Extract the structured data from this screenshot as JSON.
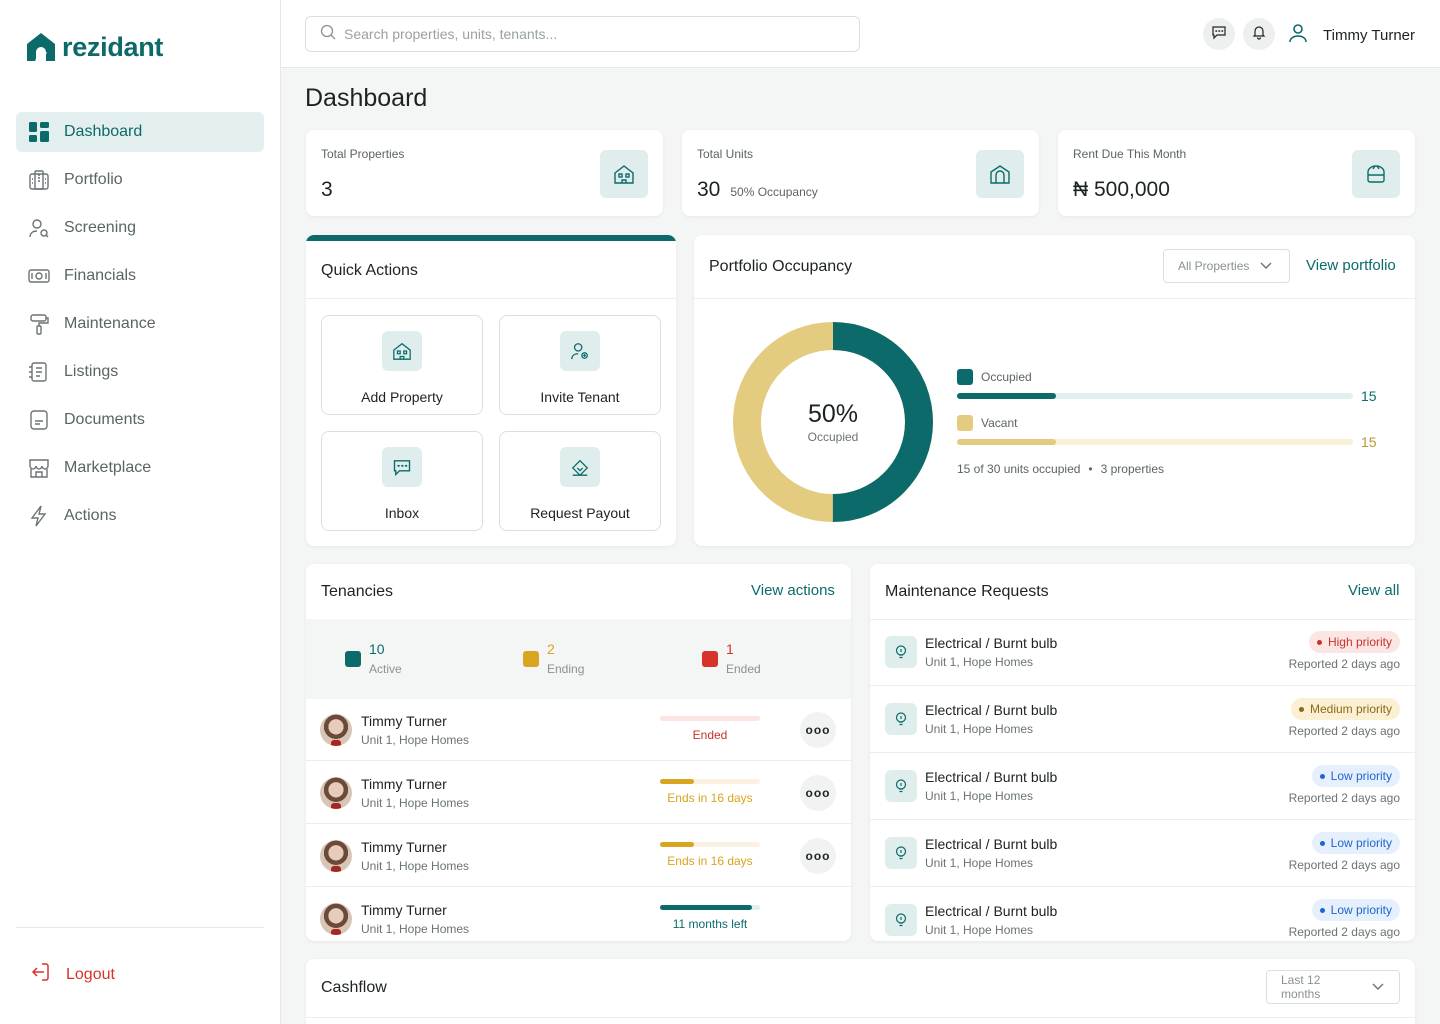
{
  "brand": {
    "name": "rezidant",
    "color": "#0c6b6a"
  },
  "search": {
    "placeholder": "Search properties, units, tenants..."
  },
  "user": {
    "name": "Timmy Turner"
  },
  "sidebar": {
    "items": [
      {
        "label": "Dashboard",
        "icon": "dashboard-icon",
        "active": true
      },
      {
        "label": "Portfolio",
        "icon": "building-icon"
      },
      {
        "label": "Screening",
        "icon": "user-search-icon"
      },
      {
        "label": "Financials",
        "icon": "money-icon"
      },
      {
        "label": "Maintenance",
        "icon": "paint-roller-icon"
      },
      {
        "label": "Listings",
        "icon": "listings-icon"
      },
      {
        "label": "Documents",
        "icon": "document-icon"
      },
      {
        "label": "Marketplace",
        "icon": "store-icon"
      },
      {
        "label": "Actions",
        "icon": "lightning-icon"
      }
    ],
    "logout": "Logout"
  },
  "page": {
    "title": "Dashboard"
  },
  "stats": {
    "total_properties": {
      "label": "Total Properties",
      "value": "3"
    },
    "total_units": {
      "label": "Total Units",
      "value": "30",
      "sub": "50% Occupancy"
    },
    "rent_due": {
      "label": "Rent Due This Month",
      "value": "₦ 500,000"
    }
  },
  "quick_actions": {
    "title": "Quick Actions",
    "items": [
      {
        "label": "Add Property",
        "icon": "house-icon"
      },
      {
        "label": "Invite Tenant",
        "icon": "user-add-icon"
      },
      {
        "label": "Inbox",
        "icon": "chat-icon"
      },
      {
        "label": "Request Payout",
        "icon": "payout-icon"
      }
    ]
  },
  "occupancy": {
    "title": "Portfolio Occupancy",
    "filter": "All Properties",
    "view_link": "View portfolio",
    "center_value": "50%",
    "center_label": "Occupied",
    "occupied": {
      "label": "Occupied",
      "value": "15",
      "fraction": 0.5,
      "color": "#0c6b6a"
    },
    "vacant": {
      "label": "Vacant",
      "value": "15",
      "fraction": 0.5,
      "color": "#e3cc7f"
    },
    "summary": "15 of 30 units occupied",
    "summary2": "3 properties",
    "separator": "•"
  },
  "tenancies": {
    "title": "Tenancies",
    "view_link": "View actions",
    "summary": [
      {
        "value": "10",
        "label": "Active",
        "color": "#0c6b6a"
      },
      {
        "value": "2",
        "label": "Ending",
        "color": "#d9a520"
      },
      {
        "value": "1",
        "label": "Ended",
        "color": "#d8332b"
      }
    ],
    "rows": [
      {
        "name": "Timmy Turner",
        "unit": "Unit 1, Hope Homes",
        "status": "Ended",
        "progress": 0,
        "color": "#c8332b",
        "track": "#fbe4e2",
        "menu": "ooo"
      },
      {
        "name": "Timmy Turner",
        "unit": "Unit 1, Hope Homes",
        "status": "Ends in 16 days",
        "progress": 0.34,
        "color": "#d9a520",
        "track": "#fbf1e0",
        "menu": "ooo"
      },
      {
        "name": "Timmy Turner",
        "unit": "Unit 1, Hope Homes",
        "status": "Ends in 16 days",
        "progress": 0.34,
        "color": "#d9a520",
        "track": "#fbf1e0",
        "menu": "ooo"
      },
      {
        "name": "Timmy Turner",
        "unit": "Unit 1, Hope Homes",
        "status": "11 months left",
        "progress": 0.92,
        "color": "#0c6b6a",
        "track": "#e3efee"
      }
    ]
  },
  "maintenance": {
    "title": "Maintenance Requests",
    "view_link": "View all",
    "rows": [
      {
        "title": "Electrical / Burnt bulb",
        "unit": "Unit 1, Hope Homes",
        "priority": "High priority",
        "time": "Reported 2 days ago",
        "fg": "#c8332b",
        "bg": "#fbe6e4"
      },
      {
        "title": "Electrical / Burnt bulb",
        "unit": "Unit 1, Hope Homes",
        "priority": "Medium priority",
        "time": "Reported 2 days ago",
        "fg": "#8a6a15",
        "bg": "#fbf0d4"
      },
      {
        "title": "Electrical / Burnt bulb",
        "unit": "Unit 1, Hope Homes",
        "priority": "Low priority",
        "time": "Reported 2 days ago",
        "fg": "#1f64d1",
        "bg": "#e6effc"
      },
      {
        "title": "Electrical / Burnt bulb",
        "unit": "Unit 1, Hope Homes",
        "priority": "Low priority",
        "time": "Reported 2 days ago",
        "fg": "#1f64d1",
        "bg": "#e6effc"
      },
      {
        "title": "Electrical / Burnt bulb",
        "unit": "Unit 1, Hope Homes",
        "priority": "Low priority",
        "time": "Reported 2 days ago",
        "fg": "#1f64d1",
        "bg": "#e6effc"
      }
    ]
  },
  "cashflow": {
    "title": "Cashflow",
    "filter": "Last 12 months"
  }
}
